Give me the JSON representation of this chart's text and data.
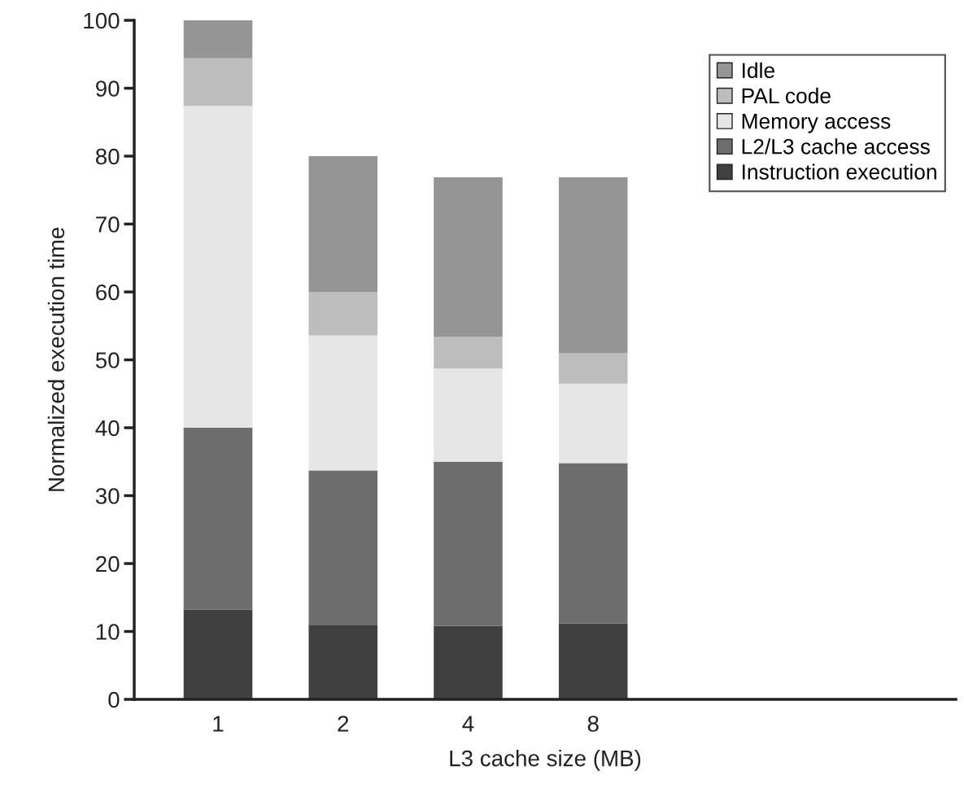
{
  "chart_data": {
    "type": "bar",
    "stacked": true,
    "xlabel": "L3 cache size (MB)",
    "ylabel": "Normalized execution time",
    "categories": [
      "1",
      "2",
      "4",
      "8"
    ],
    "series": [
      {
        "name": "Instruction execution",
        "color": "#404040",
        "values": [
          13.2,
          11.0,
          10.8,
          11.2
        ]
      },
      {
        "name": "L2/L3 cache access",
        "color": "#6d6d6d",
        "values": [
          26.8,
          22.7,
          24.2,
          23.6
        ]
      },
      {
        "name": "Memory access",
        "color": "#e6e6e6",
        "values": [
          47.4,
          19.9,
          13.7,
          11.7
        ]
      },
      {
        "name": "PAL code",
        "color": "#bdbdbd",
        "values": [
          7.0,
          6.4,
          4.7,
          4.5
        ]
      },
      {
        "name": "Idle",
        "color": "#959595",
        "values": [
          5.6,
          20.0,
          23.5,
          25.9
        ]
      }
    ],
    "ylim": [
      0,
      100
    ],
    "yticks": [
      0,
      10,
      20,
      30,
      40,
      50,
      60,
      70,
      80,
      90,
      100
    ],
    "grid": false,
    "legend": "top right"
  }
}
